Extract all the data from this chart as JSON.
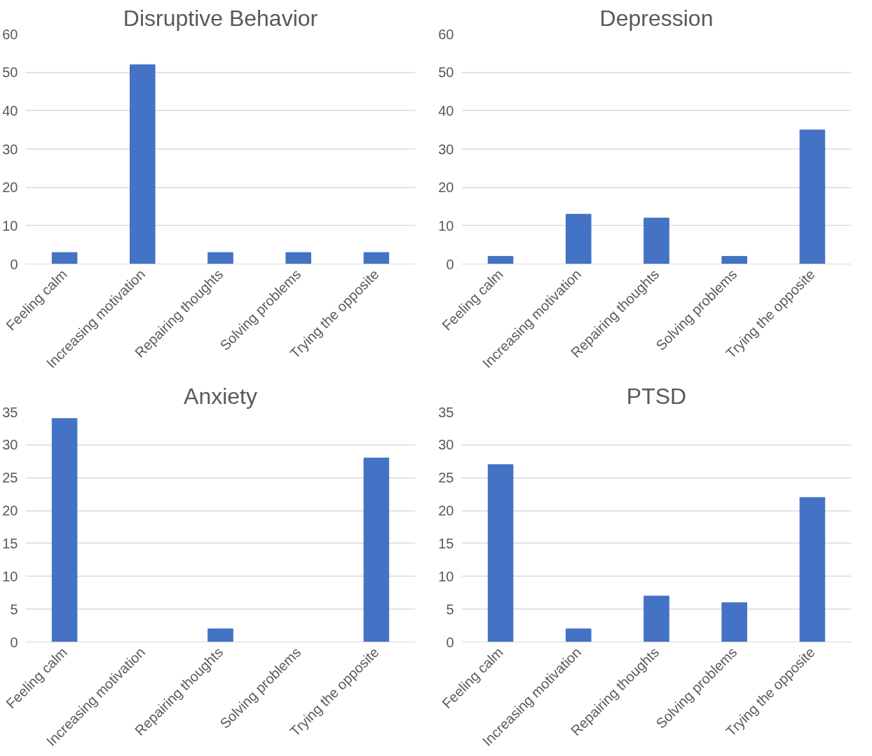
{
  "chart_data": [
    {
      "type": "bar",
      "title": "Disruptive Behavior",
      "categories": [
        "Feeling calm",
        "Increasing motivation",
        "Repairing thoughts",
        "Solving problems",
        "Trying the opposite"
      ],
      "values": [
        3,
        52,
        3,
        3,
        3
      ],
      "color": "#4472c4",
      "ylim": [
        0,
        60
      ],
      "yticks": [
        0,
        10,
        20,
        30,
        40,
        50,
        60
      ],
      "grid": "y"
    },
    {
      "type": "bar",
      "title": "Depression",
      "categories": [
        "Feeling calm",
        "Increasing motivation",
        "Repairing thoughts",
        "Solving problems",
        "Trying the opposite"
      ],
      "values": [
        2,
        13,
        12,
        2,
        35
      ],
      "color": "#4472c4",
      "ylim": [
        0,
        60
      ],
      "yticks": [
        0,
        10,
        20,
        30,
        40,
        50,
        60
      ],
      "grid": "y"
    },
    {
      "type": "bar",
      "title": "Anxiety",
      "categories": [
        "Feeling calm",
        "Increasing motivation",
        "Repairing thoughts",
        "Solving problems",
        "Trying the opposite"
      ],
      "values": [
        34,
        0,
        2,
        0,
        28
      ],
      "color": "#4472c4",
      "ylim": [
        0,
        35
      ],
      "yticks": [
        0,
        5,
        10,
        15,
        20,
        25,
        30,
        35
      ],
      "grid": "y"
    },
    {
      "type": "bar",
      "title": "PTSD",
      "categories": [
        "Feeling calm",
        "Increasing motivation",
        "Repairing thoughts",
        "Solving problems",
        "Trying the opposite"
      ],
      "values": [
        27,
        2,
        7,
        6,
        22
      ],
      "color": "#4472c4",
      "ylim": [
        0,
        35
      ],
      "yticks": [
        0,
        5,
        10,
        15,
        20,
        25,
        30,
        35
      ],
      "grid": "y"
    }
  ]
}
